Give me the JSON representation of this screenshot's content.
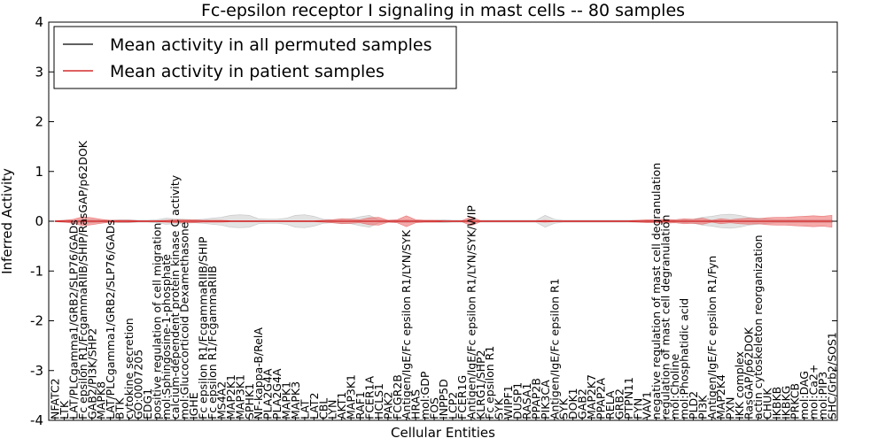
{
  "chart_data": {
    "type": "line",
    "title": "Fc-epsilon receptor I signaling in mast cells -- 80 samples",
    "xlabel": "Cellular Entities",
    "ylabel": "Inferred Activity",
    "ylim": [
      -4,
      4
    ],
    "yticks": [
      "-4",
      "-3",
      "-2",
      "-1",
      "0",
      "1",
      "2",
      "3",
      "4"
    ],
    "legend_position": "upper-left",
    "series": [
      {
        "name": "Mean activity in all permuted samples",
        "color": "#000000",
        "value": 0
      },
      {
        "name": "Mean activity in patient samples",
        "color": "#cc0000",
        "value": 0
      }
    ],
    "categories": [
      "NFATC2",
      "LTK",
      "LAT/PLCgamma1/GRB2/SLP76/GADs",
      "Fc epsilon R1/FcgammaRIIB/SHIP/RasGAP/p62DOK",
      "GAB2/PI3K/SHP2",
      "MAPK8",
      "LAT/PLCgamma1/GRB2/SLP76/GADs",
      "BTK",
      "cytokine secretion",
      "GO:0007205",
      "EDG1",
      "positive regulation of cell migration",
      "mol:Sphingosine-1-phosphate",
      "calcium-dependent protein kinase C activity",
      "mol:Glucocorticoid Dexamethasone",
      "IGHE",
      "Fc epsilon R1/FcgammaRIIB/SHIP",
      "Fc epsilon R1/FcgammaRIIB",
      "MS4A2",
      "MAP2K1",
      "MAP3K1",
      "SPHK1",
      "NF-kappa-B/RelA",
      "PLA2G4A",
      "PLA2G4A",
      "MAPK1",
      "MAPK3",
      "LAT",
      "LAT2",
      "CBL",
      "LYN",
      "AKT1",
      "MAP3K1",
      "RAF1",
      "FCER1A",
      "HCLS1",
      "PAK2",
      "FCGR2B",
      "Antigen/IgE/Fc epsilon R1/LYN/SYK",
      "HRAS",
      "mol:GDP",
      "FOS",
      "INPP5D",
      "LCP2",
      "FCER1G",
      "Antigen/IgE/Fc epsilon R1/LYN/SYK/WIP",
      "KLRG1/SHP2",
      "Fc epsilon R1",
      "SYK",
      "WIPF1",
      "DUSP1",
      "RASA1",
      "PPAP2B",
      "PIK3CA",
      "Antigen/IgE/Fc epsilon R1",
      "SYK",
      "DOK1",
      "GAB2",
      "MAP2K7",
      "PPAP2A",
      "RELA",
      "GRB2",
      "PTPN11",
      "FYN",
      "VAV1",
      "negative regulation of mast cell degranulation",
      "regulation of mast cell degranulation",
      "mol:Choline",
      "mol:Phosphatidic acid",
      "PLD2",
      "PI3K",
      "Antigen/IgE/Fc epsilon R1/Fyn",
      "MAP2K4",
      "PXN",
      "IKK complex",
      "RasGAP/p62DOK",
      "actin cytoskeleton reorganization",
      "CHUK",
      "IKBKB",
      "IKBKG",
      "PRKCB",
      "mol:DAG",
      "mol:Ca2+",
      "mol:PIP3",
      "SHC/Grb2/SOS1"
    ],
    "patient_band_halfwidth": [
      0.01,
      0.02,
      0.04,
      0.09,
      0.07,
      0.04,
      0.02,
      0.02,
      0.02,
      0.01,
      0.01,
      0.01,
      0.02,
      0.03,
      0.03,
      0.03,
      0.02,
      0.02,
      0.02,
      0.01,
      0.01,
      0.01,
      0.01,
      0.01,
      0.01,
      0.01,
      0.01,
      0.01,
      0.01,
      0.02,
      0.03,
      0.05,
      0.04,
      0.03,
      0.07,
      0.08,
      0.02,
      0.03,
      0.11,
      0.03,
      0.02,
      0.02,
      0.01,
      0.01,
      0.01,
      0.09,
      0.01,
      0.01,
      0.01,
      0.01,
      0.01,
      0.01,
      0.01,
      0.02,
      0.01,
      0.01,
      0.01,
      0.01,
      0.01,
      0.01,
      0.01,
      0.01,
      0.01,
      0.02,
      0.03,
      0.03,
      0.04,
      0.03,
      0.05,
      0.04,
      0.06,
      0.02,
      0.05,
      0.03,
      0.05,
      0.06,
      0.05,
      0.07,
      0.08,
      0.08,
      0.09,
      0.1,
      0.11,
      0.1,
      0.12
    ],
    "permuted_band_halfwidth": [
      0.01,
      0.02,
      0.02,
      0.04,
      0.03,
      0.02,
      0.02,
      0.03,
      0.03,
      0.02,
      0.02,
      0.03,
      0.06,
      0.05,
      0.04,
      0.03,
      0.04,
      0.06,
      0.08,
      0.12,
      0.13,
      0.12,
      0.05,
      0.04,
      0.04,
      0.06,
      0.12,
      0.13,
      0.1,
      0.04,
      0.03,
      0.04,
      0.05,
      0.09,
      0.12,
      0.03,
      0.02,
      0.02,
      0.03,
      0.02,
      0.02,
      0.02,
      0.03,
      0.02,
      0.02,
      0.02,
      0.02,
      0.02,
      0.02,
      0.02,
      0.02,
      0.02,
      0.02,
      0.12,
      0.04,
      0.02,
      0.02,
      0.02,
      0.02,
      0.02,
      0.02,
      0.02,
      0.02,
      0.02,
      0.02,
      0.02,
      0.02,
      0.02,
      0.03,
      0.04,
      0.08,
      0.1,
      0.13,
      0.14,
      0.12,
      0.08,
      0.06,
      0.04,
      0.03,
      0.03,
      0.03,
      0.03,
      0.03,
      0.03,
      0.03
    ]
  }
}
